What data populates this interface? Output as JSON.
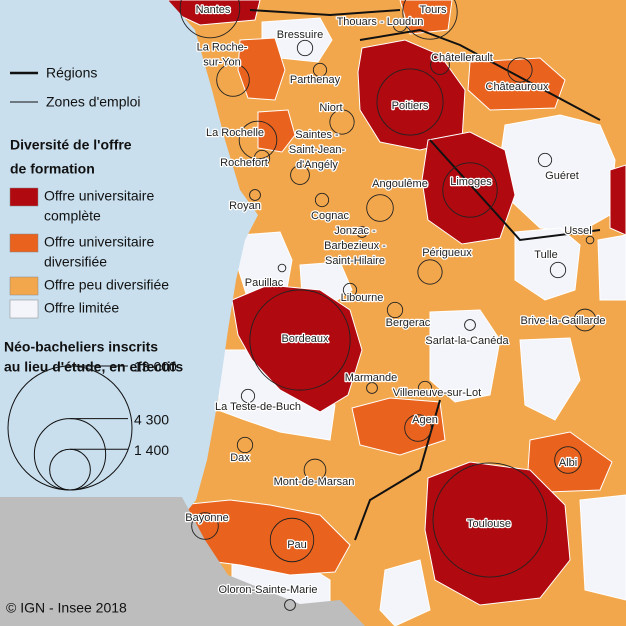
{
  "legend": {
    "lines": [
      "Régions",
      "Zones d'emploi"
    ],
    "diversity_title": [
      "Diversité de l'offre",
      "de formation"
    ],
    "categories": [
      {
        "label": [
          "Offre universitaire",
          "complète"
        ],
        "color": "#b0090f"
      },
      {
        "label": [
          "Offre universitaire",
          "diversifiée"
        ],
        "color": "#e9631e"
      },
      {
        "label": [
          "Offre peu diversifiée"
        ],
        "color": "#f3a74c"
      },
      {
        "label": [
          "Offre limitée"
        ],
        "color": "#f3f5fa"
      }
    ],
    "size_title": [
      "Néo-bacheliers inscrits",
      "au lieu d'étude, en effectifs"
    ],
    "sizes": [
      {
        "value": 13000,
        "label": "13 000"
      },
      {
        "value": 4300,
        "label": "4 300"
      },
      {
        "value": 1400,
        "label": "1 400"
      }
    ]
  },
  "places": [
    {
      "name": [
        "Nantes"
      ],
      "value": 3000
    },
    {
      "name": [
        "Tours"
      ],
      "value": 2500
    },
    {
      "name": [
        "Thouars - Loudun"
      ],
      "value": 150
    },
    {
      "name": [
        "Bressuire"
      ],
      "value": 200
    },
    {
      "name": [
        "La Roche-",
        "sur-Yon"
      ],
      "value": 900
    },
    {
      "name": [
        "Châtellerault"
      ],
      "value": 300
    },
    {
      "name": [
        "Parthenay"
      ],
      "value": 150
    },
    {
      "name": [
        "Châteauroux"
      ],
      "value": 500
    },
    {
      "name": [
        "Niort"
      ],
      "value": 500
    },
    {
      "name": [
        "Poitiers"
      ],
      "value": 3700
    },
    {
      "name": [
        "La Rochelle"
      ],
      "value": 1200
    },
    {
      "name": [
        "Saintes -",
        "Saint-Jean-",
        "d'Angély"
      ],
      "value": 300
    },
    {
      "name": [
        "Rochefort"
      ],
      "value": 200
    },
    {
      "name": [
        "Angoulême"
      ],
      "value": 600
    },
    {
      "name": [
        "Limoges"
      ],
      "value": 2500
    },
    {
      "name": [
        "Guéret"
      ],
      "value": 150
    },
    {
      "name": [
        "Cognac"
      ],
      "value": 150
    },
    {
      "name": [
        "Royan"
      ],
      "value": 100
    },
    {
      "name": [
        "Ussel"
      ],
      "value": 50
    },
    {
      "name": [
        "Jonzac -",
        "Barbezieux -",
        "Saint-Hilaire"
      ],
      "value": 100
    },
    {
      "name": [
        "Périgueux"
      ],
      "value": 500
    },
    {
      "name": [
        "Tulle"
      ],
      "value": 200
    },
    {
      "name": [
        "Pauillac"
      ],
      "value": 50
    },
    {
      "name": [
        "Libourne"
      ],
      "value": 150
    },
    {
      "name": [
        "Bergerac"
      ],
      "value": 200
    },
    {
      "name": [
        "Brive-la-Gaillarde"
      ],
      "value": 400
    },
    {
      "name": [
        "Bordeaux"
      ],
      "value": 8500
    },
    {
      "name": [
        "Sarlat-la-Canéda"
      ],
      "value": 100
    },
    {
      "name": [
        "Marmande"
      ],
      "value": 100
    },
    {
      "name": [
        "Villeneuve-sur-Lot"
      ],
      "value": 150
    },
    {
      "name": [
        "La Teste-de-Buch"
      ],
      "value": 150
    },
    {
      "name": [
        "Agen"
      ],
      "value": 600
    },
    {
      "name": [
        "Albi"
      ],
      "value": 600
    },
    {
      "name": [
        "Dax"
      ],
      "value": 200
    },
    {
      "name": [
        "Mont-de-Marsan"
      ],
      "value": 400
    },
    {
      "name": [
        "Toulouse"
      ],
      "value": 11000
    },
    {
      "name": [
        "Bayonne"
      ],
      "value": 600
    },
    {
      "name": [
        "Pau"
      ],
      "value": 1600
    },
    {
      "name": [
        "Oloron-Sainte-Marie"
      ],
      "value": 100
    }
  ],
  "credit": "© IGN - Insee 2018"
}
